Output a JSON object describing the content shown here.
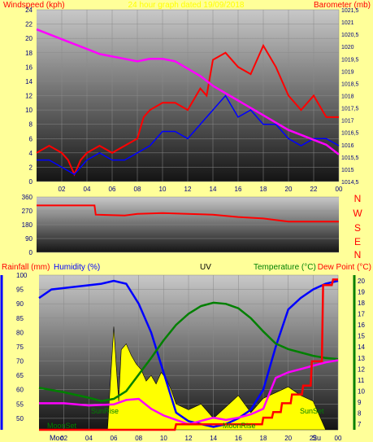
{
  "colors": {
    "background": "#ffff99",
    "wind_avg": "#0000ff",
    "wind_gust": "#ff0000",
    "barometer": "#ff00ff",
    "wind_dir": "#ff0000",
    "humidity": "#0000ff",
    "temperature": "#008000",
    "dew_point": "#ff00ff",
    "rainfall": "#ff0000",
    "uv_fill": "#ffff00",
    "uv_line": "#000000",
    "axis_text": "#000080",
    "label_red": "#ff0000",
    "label_green": "#008000"
  },
  "header": {
    "windspeed_label": "Windspeed (kph)",
    "barometer_label": "Barometer (mb)",
    "date_label": "24 hour graph dated 19/09/2018"
  },
  "labels": {
    "compass": [
      "N",
      "W",
      "S",
      "E",
      "N"
    ],
    "rainfall": "Rainfall (mm)",
    "humidity": "Humidity (%)",
    "uv": "UV",
    "temperature": "Temperature (°C)",
    "dew_point": "Dew Point (°C)",
    "moonset": "MoonSet",
    "sunrise": "SunRise",
    "moonrise": "MoonRise",
    "sunset": "SunSet",
    "bottom_left": "Moo",
    "bottom_tail": "Su"
  },
  "chart_data": [
    {
      "type": "line",
      "title": "24 hour graph dated 19/09/2018",
      "xlabel": "",
      "ylabel": "Windspeed (kph)",
      "y2label": "Barometer (mb)",
      "x_ticks": [
        "02",
        "04",
        "06",
        "08",
        "10",
        "12",
        "14",
        "16",
        "18",
        "20",
        "22",
        "00"
      ],
      "ylim": [
        0,
        24
      ],
      "y_ticks": [
        0,
        2,
        4,
        6,
        8,
        10,
        12,
        14,
        16,
        18,
        20,
        22,
        24
      ],
      "y2lim": [
        1014.5,
        1021.5
      ],
      "y2_ticks": [
        "1014,5",
        "1015",
        "1015,5",
        "1016",
        "1016,5",
        "1017",
        "1017,5",
        "1018",
        "1018,5",
        "1019",
        "1019,5",
        "1020",
        "1020,5",
        "1021",
        "1021,5"
      ],
      "series": [
        {
          "name": "Windspeed (kph)",
          "axis": "left",
          "color": "#ff0000",
          "x": [
            0,
            1,
            2,
            2.5,
            3,
            3.5,
            4,
            5,
            6,
            7,
            8,
            8.5,
            9,
            10,
            11,
            12,
            13,
            13.5,
            14,
            15,
            16,
            17,
            18,
            19,
            20,
            21,
            22,
            23,
            24
          ],
          "y": [
            4,
            5,
            4,
            3,
            1,
            3,
            4,
            5,
            4,
            5,
            6,
            9,
            10,
            11,
            11,
            10,
            13,
            12,
            17,
            18,
            16,
            15,
            19,
            16,
            12,
            10,
            12,
            9,
            9
          ]
        },
        {
          "name": "Average windspeed",
          "axis": "left",
          "color": "#0000ff",
          "x": [
            0,
            1,
            2,
            3,
            4,
            5,
            6,
            7,
            8,
            9,
            10,
            11,
            12,
            13,
            14,
            15,
            16,
            17,
            18,
            19,
            20,
            21,
            22,
            23,
            24
          ],
          "y": [
            3,
            3,
            2,
            1,
            3,
            4,
            3,
            3,
            4,
            5,
            7,
            7,
            6,
            8,
            10,
            12,
            9,
            10,
            8,
            8,
            6,
            5,
            6,
            6,
            5
          ]
        },
        {
          "name": "Barometer (mb)",
          "axis": "right",
          "color": "#ff00ff",
          "x": [
            0,
            1,
            2,
            3,
            4,
            5,
            6,
            7,
            8,
            9,
            10,
            11,
            12,
            13,
            14,
            15,
            16,
            17,
            18,
            19,
            20,
            21,
            22,
            23,
            24
          ],
          "y": [
            1020.7,
            1020.5,
            1020.3,
            1020.1,
            1019.9,
            1019.7,
            1019.6,
            1019.5,
            1019.4,
            1019.5,
            1019.5,
            1019.4,
            1019.1,
            1018.8,
            1018.4,
            1018.1,
            1017.8,
            1017.5,
            1017.2,
            1016.9,
            1016.6,
            1016.4,
            1016.2,
            1016.0,
            1015.6
          ]
        }
      ]
    },
    {
      "type": "line",
      "title": "",
      "ylabel": "",
      "ylim": [
        0,
        360
      ],
      "y_ticks": [
        0,
        90,
        180,
        270,
        360
      ],
      "series": [
        {
          "name": "Wind direction",
          "color": "#ff0000",
          "x": [
            0,
            4.6,
            4.7,
            7,
            8,
            10,
            12,
            14,
            16,
            18,
            20,
            22,
            24
          ],
          "y": [
            305,
            305,
            245,
            240,
            250,
            255,
            250,
            245,
            230,
            220,
            200,
            200,
            200
          ]
        }
      ]
    },
    {
      "type": "line",
      "title": "",
      "ylabel": "Humidity (%)",
      "y2label": "Temperature (°C)",
      "x_ticks": [
        "02",
        "04",
        "06",
        "08",
        "10",
        "12",
        "14",
        "16",
        "18",
        "20",
        "22",
        "00"
      ],
      "ylim": [
        46,
        100
      ],
      "y_ticks": [
        50,
        55,
        60,
        65,
        70,
        75,
        80,
        85,
        90,
        95,
        100
      ],
      "y2lim": [
        6.5,
        20.5
      ],
      "y2_ticks": [
        7,
        8,
        9,
        10,
        11,
        12,
        13,
        14,
        15,
        16,
        17,
        18,
        19,
        20
      ],
      "series": [
        {
          "name": "Humidity (%)",
          "axis": "left",
          "color": "#0000ff",
          "x": [
            0,
            1,
            3,
            5,
            6,
            7,
            8,
            9,
            10,
            11,
            12,
            13,
            14,
            15,
            16,
            17,
            18,
            19,
            20,
            21,
            22,
            23,
            24
          ],
          "y": [
            92,
            95,
            96,
            97,
            98,
            97,
            90,
            80,
            66,
            52,
            49,
            48,
            47,
            48,
            50,
            53,
            60,
            75,
            88,
            92,
            95,
            97,
            98
          ]
        },
        {
          "name": "Temperature (°C)",
          "axis": "right",
          "color": "#008000",
          "x": [
            0,
            2,
            4,
            5,
            6,
            7,
            8,
            9,
            10,
            11,
            12,
            13,
            14,
            15,
            16,
            17,
            18,
            19,
            20,
            21,
            22,
            23,
            24
          ],
          "y": [
            10.3,
            9.9,
            9.4,
            9.1,
            9.3,
            10.0,
            11.5,
            13.0,
            14.6,
            16.0,
            17.0,
            17.7,
            18.0,
            17.9,
            17.5,
            16.6,
            15.4,
            14.3,
            13.8,
            13.5,
            13.2,
            13.0,
            12.9
          ]
        },
        {
          "name": "Dew Point (°C)",
          "axis": "right",
          "color": "#ff00ff",
          "x": [
            0,
            2,
            4,
            6,
            7,
            8,
            9,
            10,
            11,
            12,
            13,
            14,
            15,
            16,
            17,
            18,
            19,
            20,
            21,
            22,
            23,
            24
          ],
          "y": [
            8.9,
            8.9,
            8.7,
            8.8,
            9.2,
            9.3,
            8.4,
            7.8,
            7.4,
            7.0,
            7.3,
            7.6,
            7.4,
            7.6,
            7.9,
            8.4,
            11.2,
            11.7,
            12.0,
            12.3,
            12.6,
            12.8
          ]
        },
        {
          "name": "Rainfall (mm)",
          "axis": "right",
          "color": "#ff0000",
          "x": [
            0,
            10.9,
            11.0,
            17.9,
            18.0,
            18.7,
            18.8,
            19.4,
            19.5,
            20.2,
            20.3,
            21.1,
            21.2,
            21.8,
            21.9,
            22.7,
            22.8,
            23.5,
            23.6,
            24
          ],
          "y": [
            6.5,
            6.5,
            7.0,
            7.0,
            7.6,
            7.6,
            8.1,
            8.1,
            8.9,
            8.9,
            9.7,
            9.7,
            10.5,
            10.5,
            12.7,
            12.7,
            19.6,
            19.6,
            20.1,
            20.1
          ]
        },
        {
          "name": "UV",
          "axis": "left",
          "color": "#ffff00",
          "x": [
            0,
            5.5,
            6,
            6.2,
            6.4,
            6.6,
            7,
            7.4,
            7.8,
            8.2,
            8.6,
            9,
            9.4,
            9.8,
            10.2,
            10.6,
            11,
            12,
            13,
            14,
            15,
            16,
            17,
            18,
            19,
            20,
            21,
            22,
            23,
            24
          ],
          "y": [
            46,
            46,
            82,
            68,
            56,
            74,
            76,
            72,
            69,
            67,
            63,
            65,
            62,
            66,
            64,
            60,
            55,
            53,
            55,
            50,
            54,
            58,
            52,
            57,
            59,
            61,
            58,
            56,
            46,
            46
          ]
        }
      ]
    }
  ]
}
